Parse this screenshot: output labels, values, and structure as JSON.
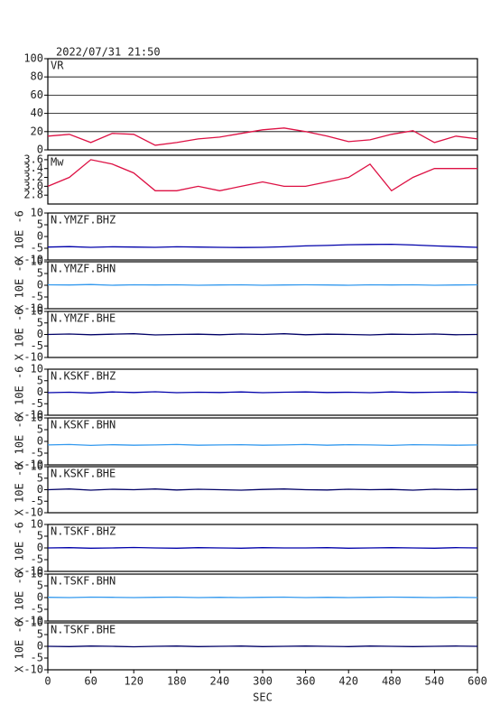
{
  "chart_data": [
    {
      "type": "line",
      "title": "2022/07/31 21:50",
      "x": [
        0,
        30,
        60,
        90,
        120,
        150,
        180,
        210,
        240,
        270,
        300,
        330,
        360,
        390,
        420,
        450,
        480,
        510,
        540,
        570,
        600
      ],
      "series": [
        {
          "name": "VR",
          "color": "#dd1144",
          "values": [
            15,
            17,
            8,
            18,
            17,
            5,
            8,
            12,
            14,
            18,
            22,
            24,
            20,
            15,
            9,
            11,
            17,
            21,
            8,
            15,
            12
          ]
        }
      ],
      "xlim": [
        0,
        600
      ],
      "ylim": [
        0,
        100
      ],
      "yticks": [
        0,
        20,
        40,
        60,
        80,
        100
      ],
      "grid": true
    },
    {
      "type": "line",
      "x": [
        0,
        30,
        60,
        90,
        120,
        150,
        180,
        210,
        240,
        270,
        300,
        330,
        360,
        390,
        420,
        450,
        480,
        510,
        540,
        570,
        600
      ],
      "series": [
        {
          "name": "Mw",
          "color": "#dd1144",
          "values": [
            3.0,
            3.2,
            3.6,
            3.5,
            3.3,
            2.9,
            2.9,
            3.0,
            2.9,
            3.0,
            3.1,
            3.0,
            3.0,
            3.1,
            3.2,
            3.5,
            2.9,
            3.2,
            3.4,
            3.4,
            3.4
          ]
        }
      ],
      "xlim": [
        0,
        600
      ],
      "ylim": [
        2.6,
        3.7
      ],
      "yticks": [
        {
          "value": 2.8,
          "label": "2.8"
        },
        {
          "value": 3.0,
          "label": "3.0"
        },
        {
          "value": 3.2,
          "label": "3.2"
        },
        {
          "value": 3.4,
          "label": "3.4"
        },
        {
          "value": 3.6,
          "label": "3.6"
        }
      ],
      "grid": false
    },
    {
      "type": "line",
      "ylabel": "X 10E -6",
      "x": [
        0,
        30,
        60,
        90,
        120,
        150,
        180,
        210,
        240,
        270,
        300,
        330,
        360,
        390,
        420,
        450,
        480,
        510,
        540,
        570,
        600
      ],
      "series": [
        {
          "name": "N.YMZF.BHZ",
          "color": "#0000aa",
          "values": [
            -4.5,
            -4.3,
            -4.6,
            -4.4,
            -4.5,
            -4.6,
            -4.4,
            -4.5,
            -4.6,
            -4.7,
            -4.6,
            -4.4,
            -4.0,
            -3.8,
            -3.5,
            -3.4,
            -3.3,
            -3.6,
            -4.0,
            -4.3,
            -4.6
          ]
        }
      ],
      "xlim": [
        0,
        600
      ],
      "ylim": [
        -10,
        10
      ],
      "yticks": [
        -10,
        -5,
        0,
        5,
        10
      ],
      "grid": false
    },
    {
      "type": "line",
      "ylabel": "X 10E -6",
      "x": [
        0,
        30,
        60,
        90,
        120,
        150,
        180,
        210,
        240,
        270,
        300,
        330,
        360,
        390,
        420,
        450,
        480,
        510,
        540,
        570,
        600
      ],
      "series": [
        {
          "name": "N.YMZF.BHN",
          "color": "#3399ee",
          "values": [
            0.2,
            0.1,
            0.3,
            0,
            0.2,
            0.1,
            0.2,
            0,
            0.1,
            0.2,
            0,
            0.1,
            0.2,
            0.1,
            0,
            0.2,
            0.1,
            0.2,
            0,
            0.1,
            0.2
          ]
        }
      ],
      "xlim": [
        0,
        600
      ],
      "ylim": [
        -10,
        10
      ],
      "yticks": [
        -10,
        -5,
        0,
        5,
        10
      ],
      "grid": false
    },
    {
      "type": "line",
      "ylabel": "X 10E -6",
      "x": [
        0,
        30,
        60,
        90,
        120,
        150,
        180,
        210,
        240,
        270,
        300,
        330,
        360,
        390,
        420,
        450,
        480,
        510,
        540,
        570,
        600
      ],
      "series": [
        {
          "name": "N.YMZF.BHE",
          "color": "#000066",
          "values": [
            0,
            0.2,
            -0.1,
            0.1,
            0.3,
            -0.2,
            0,
            0.1,
            -0.1,
            0.2,
            0,
            0.3,
            -0.1,
            0.1,
            0,
            -0.2,
            0.1,
            0,
            0.2,
            -0.1,
            0
          ]
        }
      ],
      "xlim": [
        0,
        600
      ],
      "ylim": [
        -10,
        10
      ],
      "yticks": [
        -10,
        -5,
        0,
        5,
        10
      ],
      "grid": false
    },
    {
      "type": "line",
      "ylabel": "X 10E -6",
      "x": [
        0,
        30,
        60,
        90,
        120,
        150,
        180,
        210,
        240,
        270,
        300,
        330,
        360,
        390,
        420,
        450,
        480,
        510,
        540,
        570,
        600
      ],
      "series": [
        {
          "name": "N.KSKF.BHZ",
          "color": "#0000aa",
          "values": [
            -0.2,
            0,
            -0.3,
            0.1,
            -0.1,
            0.2,
            -0.2,
            0,
            -0.1,
            0.1,
            -0.2,
            0,
            0.1,
            -0.1,
            0,
            -0.2,
            0.1,
            -0.1,
            0,
            0.1,
            -0.1
          ]
        }
      ],
      "xlim": [
        0,
        600
      ],
      "ylim": [
        -10,
        10
      ],
      "yticks": [
        -10,
        -5,
        0,
        5,
        10
      ],
      "grid": false
    },
    {
      "type": "line",
      "ylabel": "X 10E -6",
      "x": [
        0,
        30,
        60,
        90,
        120,
        150,
        180,
        210,
        240,
        270,
        300,
        330,
        360,
        390,
        420,
        450,
        480,
        510,
        540,
        570,
        600
      ],
      "series": [
        {
          "name": "N.KSKF.BHN",
          "color": "#3399ee",
          "values": [
            -1.5,
            -1.3,
            -1.7,
            -1.4,
            -1.6,
            -1.5,
            -1.3,
            -1.6,
            -1.5,
            -1.4,
            -1.6,
            -1.5,
            -1.3,
            -1.6,
            -1.4,
            -1.5,
            -1.7,
            -1.4,
            -1.5,
            -1.6,
            -1.5
          ]
        }
      ],
      "xlim": [
        0,
        600
      ],
      "ylim": [
        -10,
        10
      ],
      "yticks": [
        -10,
        -5,
        0,
        5,
        10
      ],
      "grid": false
    },
    {
      "type": "line",
      "ylabel": "X 10E -6",
      "x": [
        0,
        30,
        60,
        90,
        120,
        150,
        180,
        210,
        240,
        270,
        300,
        330,
        360,
        390,
        420,
        450,
        480,
        510,
        540,
        570,
        600
      ],
      "series": [
        {
          "name": "N.KSKF.BHE",
          "color": "#000066",
          "values": [
            0,
            0.3,
            -0.2,
            0.2,
            0,
            0.3,
            -0.1,
            0.2,
            0,
            -0.2,
            0.1,
            0.3,
            0,
            -0.1,
            0.2,
            0,
            0.1,
            -0.2,
            0.2,
            0,
            0.1
          ]
        }
      ],
      "xlim": [
        0,
        600
      ],
      "ylim": [
        -10,
        10
      ],
      "yticks": [
        -10,
        -5,
        0,
        5,
        10
      ],
      "grid": false
    },
    {
      "type": "line",
      "ylabel": "X 10E -6",
      "x": [
        0,
        30,
        60,
        90,
        120,
        150,
        180,
        210,
        240,
        270,
        300,
        330,
        360,
        390,
        420,
        450,
        480,
        510,
        540,
        570,
        600
      ],
      "series": [
        {
          "name": "N.TSKF.BHZ",
          "color": "#0000aa",
          "values": [
            0,
            0.1,
            -0.1,
            0,
            0.2,
            0,
            -0.1,
            0.1,
            0,
            -0.1,
            0.1,
            0,
            0,
            0.1,
            -0.1,
            0,
            0.1,
            0,
            -0.1,
            0.1,
            0
          ]
        }
      ],
      "xlim": [
        0,
        600
      ],
      "ylim": [
        -10,
        10
      ],
      "yticks": [
        -10,
        -5,
        0,
        5,
        10
      ],
      "grid": false
    },
    {
      "type": "line",
      "ylabel": "X 10E -6",
      "x": [
        0,
        30,
        60,
        90,
        120,
        150,
        180,
        210,
        240,
        270,
        300,
        330,
        360,
        390,
        420,
        450,
        480,
        510,
        540,
        570,
        600
      ],
      "series": [
        {
          "name": "N.TSKF.BHN",
          "color": "#3399ee",
          "values": [
            0.1,
            0,
            0.2,
            0.1,
            0,
            0.1,
            0.2,
            0,
            0.1,
            0,
            0.1,
            0.2,
            0,
            0.1,
            0,
            0.1,
            0.2,
            0.1,
            0,
            0.1,
            0
          ]
        }
      ],
      "xlim": [
        0,
        600
      ],
      "ylim": [
        -10,
        10
      ],
      "yticks": [
        -10,
        -5,
        0,
        5,
        10
      ],
      "grid": false
    },
    {
      "type": "line",
      "ylabel": "X 10E -6",
      "xlabel": "SEC",
      "x": [
        0,
        30,
        60,
        90,
        120,
        150,
        180,
        210,
        240,
        270,
        300,
        330,
        360,
        390,
        420,
        450,
        480,
        510,
        540,
        570,
        600
      ],
      "series": [
        {
          "name": "N.TSKF.BHE",
          "color": "#000066",
          "values": [
            0,
            -0.1,
            0.1,
            0,
            -0.2,
            0,
            0.1,
            -0.1,
            0,
            0.1,
            -0.1,
            0,
            0.1,
            0,
            -0.1,
            0.1,
            0,
            -0.1,
            0,
            0.1,
            0
          ]
        }
      ],
      "xlim": [
        0,
        600
      ],
      "ylim": [
        -10,
        10
      ],
      "yticks": [
        -10,
        -5,
        0,
        5,
        10
      ],
      "xticks": [
        0,
        60,
        120,
        180,
        240,
        300,
        360,
        420,
        480,
        540,
        600
      ],
      "grid": false
    }
  ]
}
